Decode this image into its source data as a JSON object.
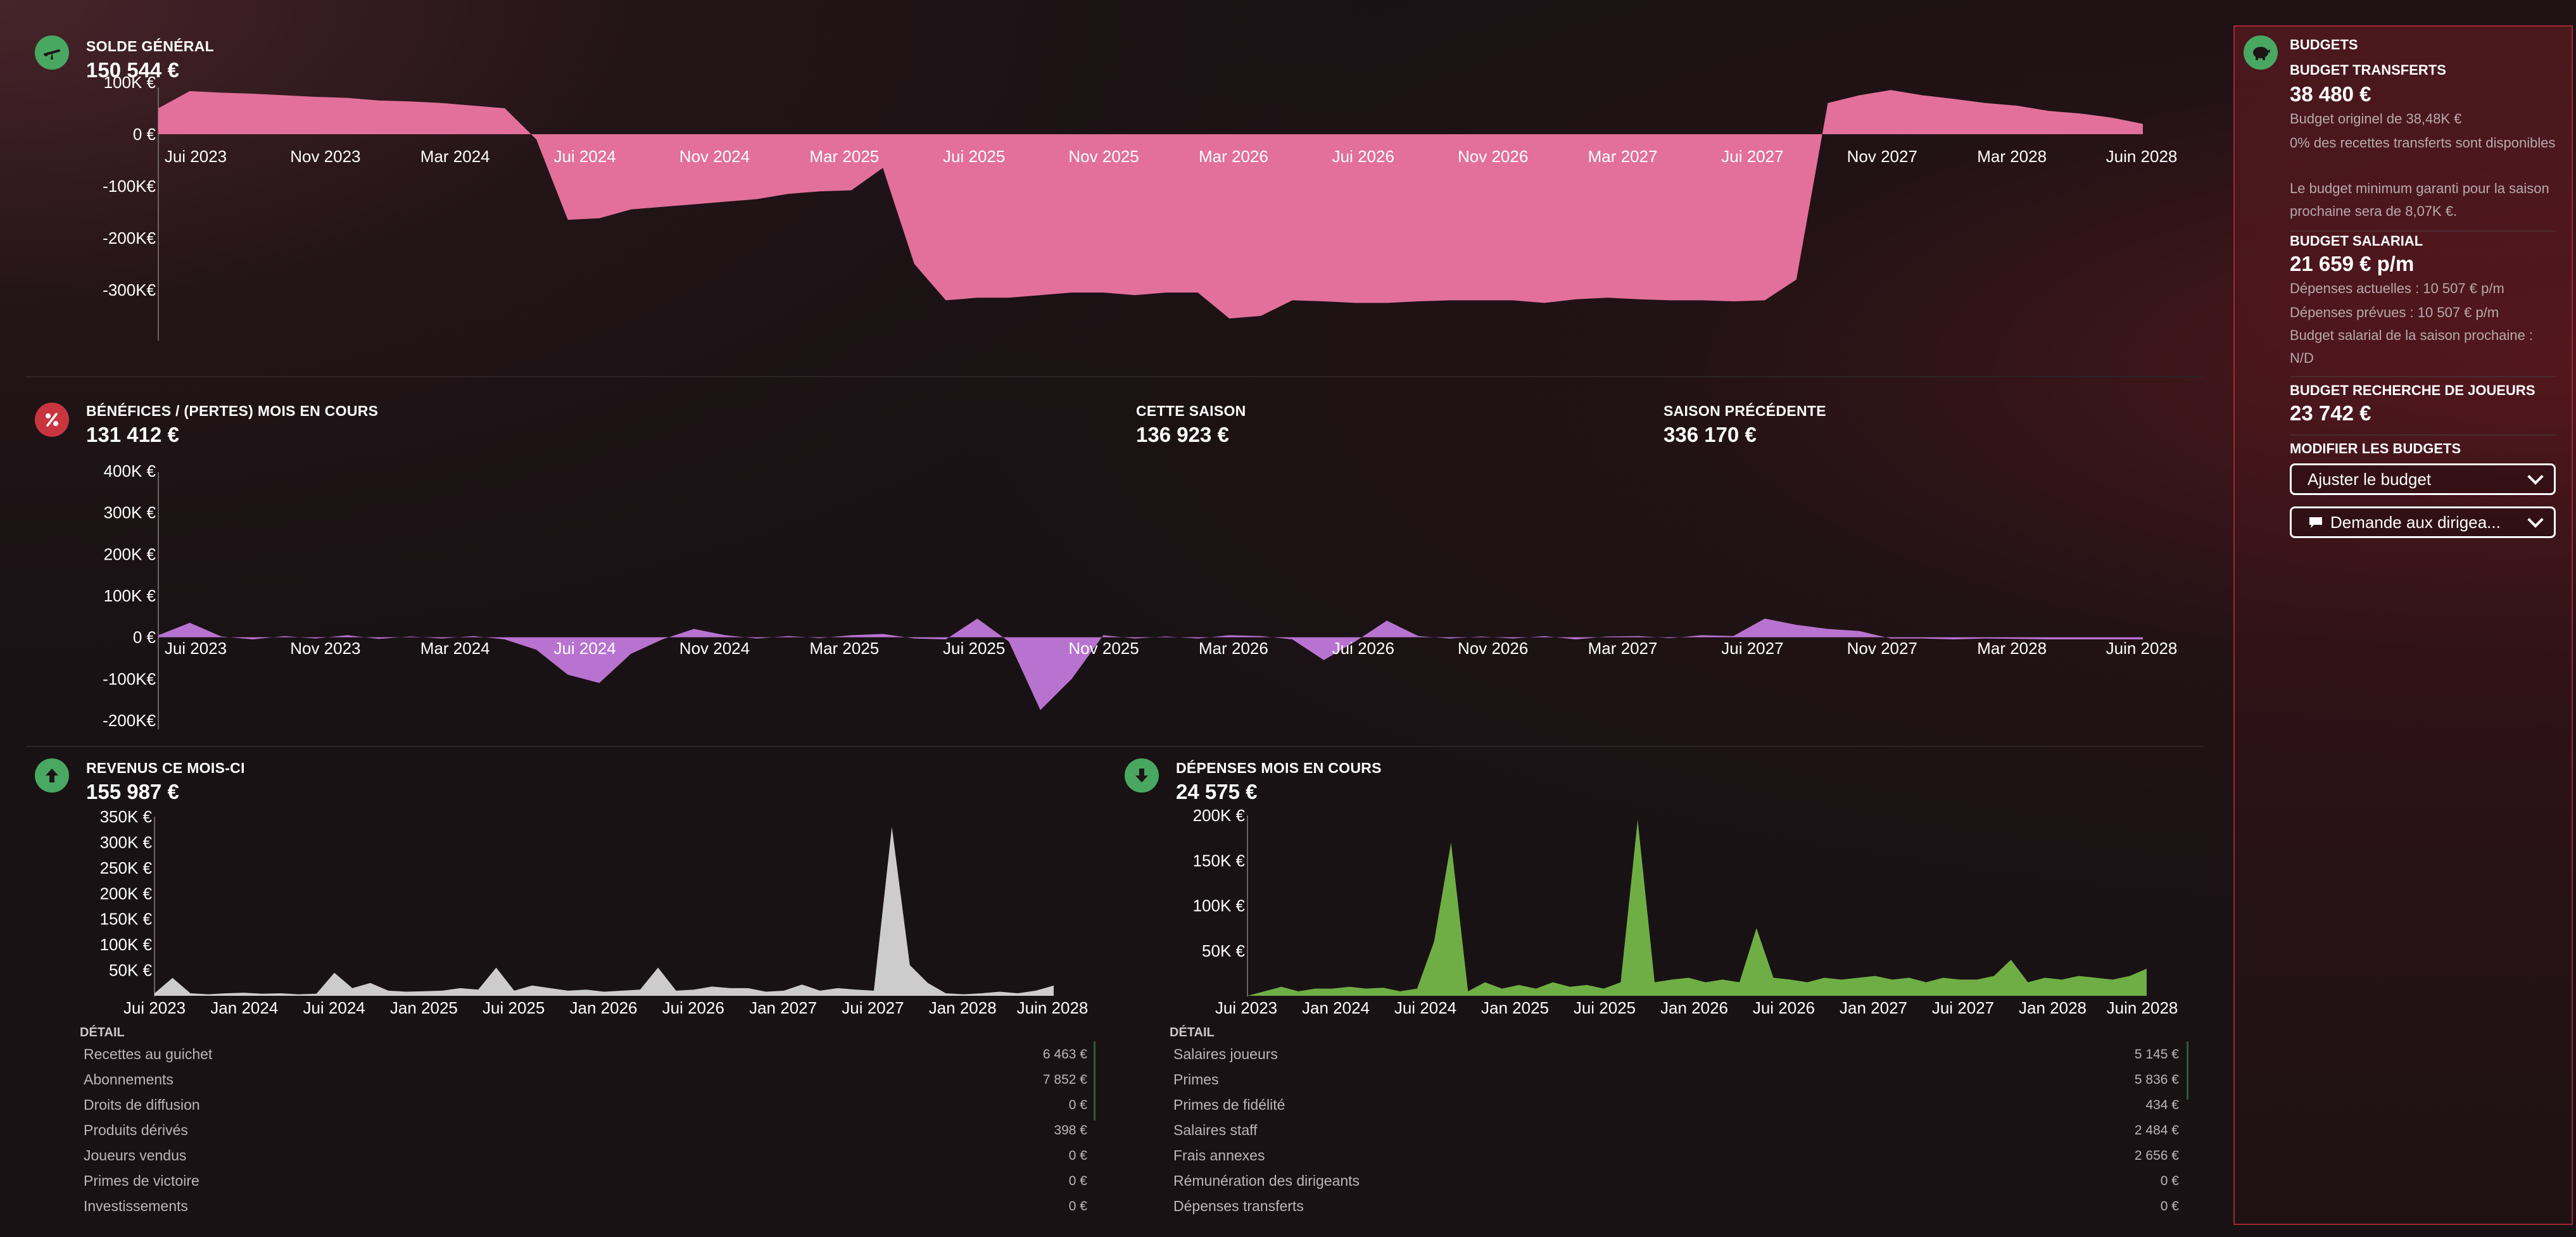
{
  "colors": {
    "balance": "#e2709a",
    "profit": "#b873d0",
    "income": "#cccccc",
    "expense": "#6fae45",
    "accent_green": "#48a861",
    "accent_red": "#c9353f"
  },
  "balance": {
    "title": "SOLDE GÉNÉRAL",
    "value": "150 544 €",
    "icon": "scale-icon"
  },
  "profit": {
    "title": "BÉNÉFICES / (PERTES) MOIS EN COURS",
    "value": "131 412 €",
    "icon": "percent-icon",
    "this_season_title": "CETTE SAISON",
    "this_season_value": "136 923 €",
    "prev_season_title": "SAISON PRÉCÉDENTE",
    "prev_season_value": "336 170 €"
  },
  "income": {
    "title": "REVENUS CE MOIS-CI",
    "value": "155 987 €",
    "icon": "arrow-up-icon",
    "detail_title": "DÉTAIL",
    "rows": [
      {
        "label": "Recettes au guichet",
        "value": "6 463 €"
      },
      {
        "label": "Abonnements",
        "value": "7 852 €"
      },
      {
        "label": "Droits de diffusion",
        "value": "0 €"
      },
      {
        "label": "Produits dérivés",
        "value": "398 €"
      },
      {
        "label": "Joueurs vendus",
        "value": "0 €"
      },
      {
        "label": "Primes de victoire",
        "value": "0 €"
      },
      {
        "label": "Investissements",
        "value": "0 €"
      }
    ]
  },
  "expense": {
    "title": "DÉPENSES MOIS EN COURS",
    "value": "24 575 €",
    "icon": "arrow-down-icon",
    "detail_title": "DÉTAIL",
    "rows": [
      {
        "label": "Salaires joueurs",
        "value": "5 145 €"
      },
      {
        "label": "Primes",
        "value": "5 836 €"
      },
      {
        "label": "Primes de fidélité",
        "value": "434 €"
      },
      {
        "label": "Salaires staff",
        "value": "2 484 €"
      },
      {
        "label": "Frais annexes",
        "value": "2 656 €"
      },
      {
        "label": "Rémunération des dirigeants",
        "value": "0 €"
      },
      {
        "label": "Dépenses transferts",
        "value": "0 €"
      }
    ]
  },
  "budgets": {
    "title": "BUDGETS",
    "icon": "piggy-bank-icon",
    "transfer_title": "BUDGET TRANSFERTS",
    "transfer_value": "38 480 €",
    "transfer_notes": [
      "Budget originel de 38,48K €",
      "0% des recettes transferts sont disponibles",
      "Le budget minimum garanti pour la saison prochaine sera de 8,07K €."
    ],
    "wage_title": "BUDGET SALARIAL",
    "wage_value": "21 659 € p/m",
    "wage_notes": [
      "Dépenses actuelles : 10 507 € p/m",
      "Dépenses prévues : 10 507 € p/m",
      "Budget salarial de la saison prochaine : N/D"
    ],
    "scout_title": "BUDGET RECHERCHE DE JOUEURS",
    "scout_value": "23 742 €",
    "modify_title": "MODIFIER LES BUDGETS",
    "adjust_button": "Ajuster le budget",
    "request_button": "Demande aux dirigea..."
  },
  "chart_data": [
    {
      "type": "area",
      "title": "SOLDE GÉNÉRAL",
      "x_tick_labels": [
        "Jui 2023",
        "Nov 2023",
        "Mar 2024",
        "Jui 2024",
        "Nov 2024",
        "Mar 2025",
        "Jui 2025",
        "Nov 2025",
        "Mar 2026",
        "Jui 2026",
        "Nov 2026",
        "Mar 2027",
        "Jui 2027",
        "Nov 2027",
        "Mar 2028",
        "Juin 2028"
      ],
      "y_tick_labels": [
        "100K €",
        "0 €",
        "-100K€",
        "-200K€",
        "-300K€"
      ],
      "ylim": [
        -400000,
        100000
      ],
      "values": [
        50000,
        83000,
        80000,
        78000,
        75000,
        72000,
        70000,
        65000,
        63000,
        60000,
        55000,
        50000,
        -10000,
        -165000,
        -162000,
        -145000,
        -140000,
        -135000,
        -130000,
        -125000,
        -115000,
        -110000,
        -108000,
        -65000,
        -250000,
        -320000,
        -315000,
        -315000,
        -310000,
        -305000,
        -305000,
        -310000,
        -305000,
        -305000,
        -355000,
        -350000,
        -320000,
        -322000,
        -325000,
        -325000,
        -322000,
        -320000,
        -320000,
        -320000,
        -325000,
        -318000,
        -315000,
        -318000,
        -320000,
        -320000,
        -322000,
        -320000,
        -280000,
        60000,
        75000,
        85000,
        75000,
        68000,
        60000,
        55000,
        45000,
        40000,
        32000,
        20000
      ]
    },
    {
      "type": "area",
      "title": "BÉNÉFICES / (PERTES) MOIS EN COURS",
      "x_tick_labels": [
        "Jui 2023",
        "Nov 2023",
        "Mar 2024",
        "Jui 2024",
        "Nov 2024",
        "Mar 2025",
        "Jui 2025",
        "Nov 2025",
        "Mar 2026",
        "Jui 2026",
        "Nov 2026",
        "Mar 2027",
        "Jui 2027",
        "Nov 2027",
        "Mar 2028",
        "Juin 2028"
      ],
      "y_tick_labels": [
        "400K €",
        "300K €",
        "200K €",
        "100K €",
        "0 €",
        "-100K€",
        "-200K€"
      ],
      "ylim": [
        -200000,
        400000
      ],
      "values": [
        5000,
        35000,
        2000,
        -5000,
        3000,
        -3000,
        5000,
        -4000,
        2000,
        -3000,
        3000,
        -5000,
        -30000,
        -90000,
        -110000,
        -40000,
        -5000,
        20000,
        5000,
        -3000,
        3000,
        -2000,
        5000,
        8000,
        -3000,
        -5000,
        45000,
        -10000,
        -175000,
        -100000,
        5000,
        -3000,
        2000,
        -3000,
        5000,
        3000,
        -5000,
        -55000,
        -10000,
        40000,
        3000,
        -3000,
        2000,
        -3000,
        3000,
        -5000,
        2000,
        3000,
        -2000,
        5000,
        3000,
        45000,
        30000,
        20000,
        15000,
        -3000,
        -3000,
        -5000,
        -3000,
        -4000,
        -5000,
        -5000,
        -5000,
        -5000
      ]
    },
    {
      "type": "area",
      "title": "REVENUS CE MOIS-CI",
      "x_tick_labels": [
        "Jui 2023",
        "Jan 2024",
        "Jui 2024",
        "Jan 2025",
        "Jui 2025",
        "Jan 2026",
        "Jui 2026",
        "Jan 2027",
        "Jui 2027",
        "Jan 2028",
        "Juin 2028"
      ],
      "y_tick_labels": [
        "350K €",
        "300K €",
        "250K €",
        "200K €",
        "150K €",
        "100K €",
        "50K €"
      ],
      "ylim": [
        0,
        350000
      ],
      "values": [
        5000,
        35000,
        5000,
        3000,
        5000,
        6000,
        4000,
        5000,
        3000,
        4000,
        45000,
        15000,
        25000,
        10000,
        8000,
        9000,
        10000,
        15000,
        12000,
        55000,
        10000,
        20000,
        15000,
        10000,
        12000,
        8000,
        10000,
        12000,
        55000,
        10000,
        12000,
        18000,
        15000,
        15000,
        8000,
        10000,
        22000,
        10000,
        15000,
        12000,
        10000,
        330000,
        60000,
        25000,
        5000,
        3000,
        5000,
        8000,
        5000,
        10000,
        20000
      ]
    },
    {
      "type": "area",
      "title": "DÉPENSES MOIS EN COURS",
      "x_tick_labels": [
        "Jui 2023",
        "Jan 2024",
        "Jui 2024",
        "Jan 2025",
        "Jui 2025",
        "Jan 2026",
        "Jui 2026",
        "Jan 2027",
        "Jui 2027",
        "Jan 2028",
        "Juin 2028"
      ],
      "y_tick_labels": [
        "200K €",
        "150K €",
        "100K €",
        "50K €"
      ],
      "ylim": [
        0,
        200000
      ],
      "values": [
        0,
        5000,
        10000,
        5000,
        8000,
        8000,
        10000,
        8000,
        9000,
        5000,
        8000,
        60000,
        170000,
        5000,
        15000,
        8000,
        12000,
        8000,
        15000,
        10000,
        12000,
        8000,
        15000,
        195000,
        15000,
        18000,
        20000,
        15000,
        18000,
        15000,
        75000,
        20000,
        18000,
        15000,
        20000,
        18000,
        20000,
        22000,
        18000,
        20000,
        15000,
        20000,
        18000,
        18000,
        22000,
        40000,
        15000,
        20000,
        18000,
        22000,
        20000,
        18000,
        22000,
        30000
      ]
    }
  ]
}
